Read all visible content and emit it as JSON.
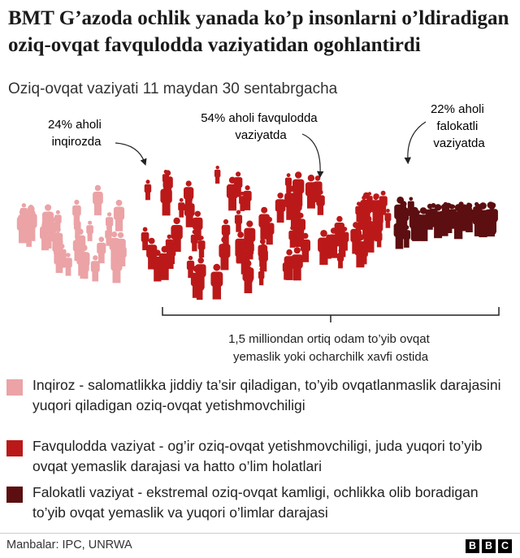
{
  "title": "BMT G’azoda ochlik yanada ko’p insonlarni o’ldiradigan oziq-ovqat favqulodda vaziyatidan ogohlantirdi",
  "subtitle": "Oziq-ovqat vaziyati 11 maydan 30 sentabrgacha",
  "chart_data": {
    "type": "pictogram",
    "categories": [
      "Inqiroz",
      "Favqulodda vaziyat",
      "Falokatli vaziyat"
    ],
    "values": [
      24,
      54,
      22
    ],
    "unit": "%",
    "annotations": [
      {
        "lines": [
          "24% aholi",
          "inqirozda"
        ],
        "color": "#eba3a6"
      },
      {
        "lines": [
          "54% aholi favqulodda",
          "vaziyatda"
        ],
        "color": "#bb1919"
      },
      {
        "lines": [
          "22% aholi",
          "falokatli",
          "vaziyatda"
        ],
        "color": "#5c0e10"
      }
    ],
    "bracket_label": [
      "1,5 milliondan ortiq odam to’yib ovqat",
      "yemaslik yoki ocharchilk xavfi ostida"
    ],
    "colors": [
      "#eba3a6",
      "#bb1919",
      "#5c0e10"
    ]
  },
  "legend": [
    {
      "color": "#eba3a6",
      "text": "Inqiroz - salomatlikka jiddiy ta’sir qiladigan, to’yib ovqatlanmaslik darajasini yuqori qiladigan oziq-ovqat yetishmovchiligi"
    },
    {
      "color": "#bb1919",
      "text": "Favqulodda vaziyat - og’ir oziq-ovqat yetishmovchiligi, juda yuqori to’yib ovqat yemaslik darajasi va hatto o’lim holatlari"
    },
    {
      "color": "#5c0e10",
      "text": "Falokatli vaziyat - ekstremal oziq-ovqat kamligi, ochlikka olib boradigan to’yib ovqat yemaslik va yuqori o’limlar darajasi"
    }
  ],
  "source": "Manbalar: IPC, UNRWA",
  "logo": [
    "B",
    "B",
    "C"
  ]
}
